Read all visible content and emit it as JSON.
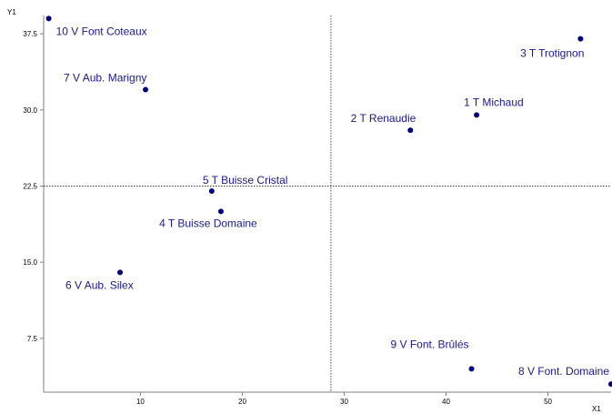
{
  "chart_data": {
    "type": "scatter",
    "title": "",
    "xlabel": "X1",
    "ylabel": "Y1",
    "xlim": [
      0.5,
      56.2
    ],
    "ylim": [
      2.2,
      39.3
    ],
    "xticks": [
      10,
      20,
      30,
      40,
      50
    ],
    "yticks": [
      7.5,
      15.0,
      22.5,
      30.0,
      37.5
    ],
    "xtick_labels": [
      "10",
      "20",
      "30",
      "40",
      "50"
    ],
    "ytick_labels": [
      "7.5",
      "15.0",
      "22.5",
      "30.0",
      "37.5"
    ],
    "reference_lines": {
      "x": 28.7,
      "y": 22.5
    },
    "grid": false,
    "point_color": "#00007f",
    "label_color": "#1a1a8c",
    "points": [
      {
        "label": "1 T Michaud",
        "x": 43.0,
        "y": 29.5,
        "label_anchor": "above-right"
      },
      {
        "label": "2 T Renaudie",
        "x": 36.5,
        "y": 28.0,
        "label_anchor": "above-left"
      },
      {
        "label": "3 T Trotignon",
        "x": 53.2,
        "y": 37.0,
        "label_anchor": "below-left"
      },
      {
        "label": "4 T Buisse Domaine",
        "x": 17.9,
        "y": 20.0,
        "label_anchor": "below-center"
      },
      {
        "label": "5 T Buisse Cristal",
        "x": 17.0,
        "y": 22.0,
        "label_anchor": "above-right"
      },
      {
        "label": "6 V Aub. Silex",
        "x": 8.0,
        "y": 14.0,
        "label_anchor": "below-right"
      },
      {
        "label": "7 V Aub. Marigny",
        "x": 10.5,
        "y": 32.0,
        "label_anchor": "above-center"
      },
      {
        "label": "8 V Font. Domaine",
        "x": 56.2,
        "y": 3.0,
        "label_anchor": "above-left"
      },
      {
        "label": "9 V Font. Brûlés",
        "x": 42.5,
        "y": 4.5,
        "label_anchor": "above-left"
      },
      {
        "label": "10 V Font Coteaux",
        "x": 1.0,
        "y": 39.0,
        "label_anchor": "below-right"
      }
    ]
  }
}
